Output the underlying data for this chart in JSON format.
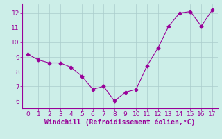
{
  "x": [
    0,
    1,
    2,
    3,
    4,
    5,
    6,
    7,
    8,
    9,
    10,
    11,
    12,
    13,
    14,
    15,
    16,
    17
  ],
  "y": [
    9.2,
    8.8,
    8.6,
    8.6,
    8.3,
    7.7,
    6.8,
    7.0,
    6.0,
    6.6,
    6.8,
    8.4,
    9.6,
    11.1,
    12.0,
    12.1,
    11.1,
    12.2
  ],
  "line_color": "#990099",
  "marker": "D",
  "marker_size": 2.5,
  "bg_color": "#cceee8",
  "grid_color": "#aacccc",
  "xlabel": "Windchill (Refroidissement éolien,°C)",
  "xlabel_color": "#990099",
  "tick_color": "#990099",
  "spine_color": "#990099",
  "ylim": [
    5.5,
    12.6
  ],
  "xlim": [
    -0.5,
    17.5
  ],
  "yticks": [
    6,
    7,
    8,
    9,
    10,
    11,
    12
  ],
  "xticks": [
    0,
    1,
    2,
    3,
    4,
    5,
    6,
    7,
    8,
    9,
    10,
    11,
    12,
    13,
    14,
    15,
    16,
    17
  ],
  "tick_fontsize": 6.5,
  "xlabel_fontsize": 7.0
}
